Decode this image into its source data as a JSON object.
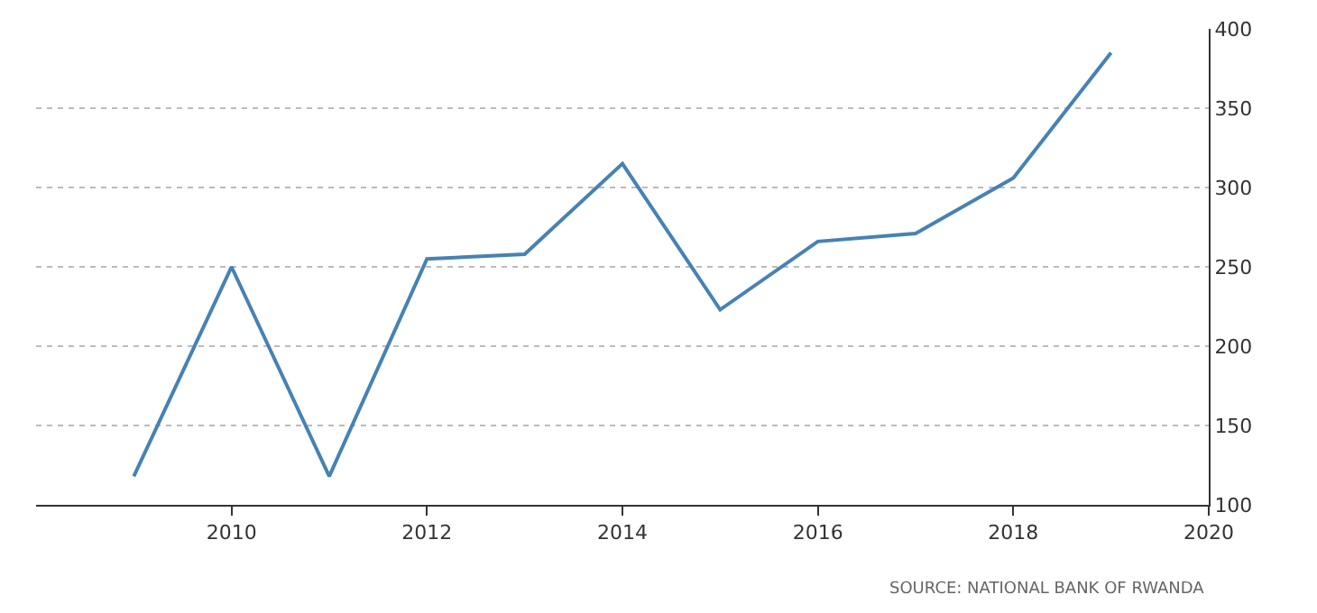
{
  "chart_data": {
    "type": "line",
    "x": [
      2009,
      2010,
      2011,
      2012,
      2013,
      2014,
      2015,
      2016,
      2017,
      2018,
      2019
    ],
    "series": [
      {
        "color": "#4682b4",
        "values": [
          118,
          250,
          118,
          255,
          258,
          315,
          223,
          266,
          271,
          306,
          385
        ]
      }
    ],
    "xlim": [
      2008,
      2020
    ],
    "xticks": [
      2010,
      2012,
      2014,
      2016,
      2018,
      2020
    ],
    "ylim": [
      100,
      400
    ],
    "yticks": [
      100,
      150,
      200,
      250,
      300,
      350,
      400
    ],
    "grid": "y",
    "marker": "none",
    "line_style": "solid",
    "annotations": [
      "SOURCE: NATIONAL BANK OF RWANDA"
    ]
  }
}
